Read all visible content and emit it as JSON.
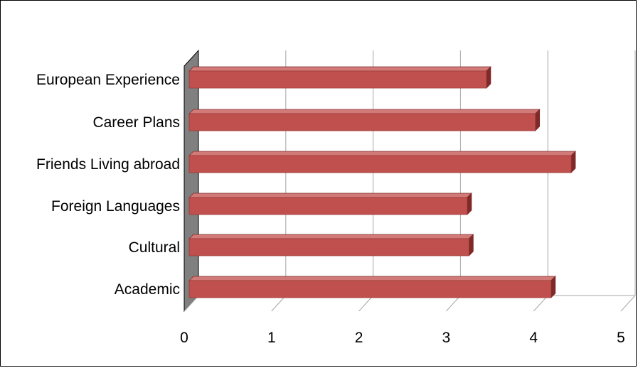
{
  "chart_data": {
    "type": "bar",
    "orientation": "horizontal",
    "style": "3d",
    "title": "",
    "xlabel": "",
    "ylabel": "",
    "categories": [
      "Academic",
      "Cultural",
      "Foreign Languages",
      "Friends Living abroad",
      "Career Plans",
      "European Experience"
    ],
    "values": [
      4.2,
      3.26,
      3.24,
      4.43,
      4.02,
      3.46
    ],
    "xlim": [
      0,
      5
    ],
    "x_ticks": [
      "0",
      "1",
      "2",
      "3",
      "4",
      "5"
    ],
    "grid": "vertical gridlines",
    "legend": "none",
    "colors": {
      "bar_front": "#c0504d",
      "bar_top": "#d27a78",
      "bar_side": "#7f2a28",
      "wall": "#808080",
      "grid": "#a6a6a6",
      "frame": "#000000"
    }
  }
}
